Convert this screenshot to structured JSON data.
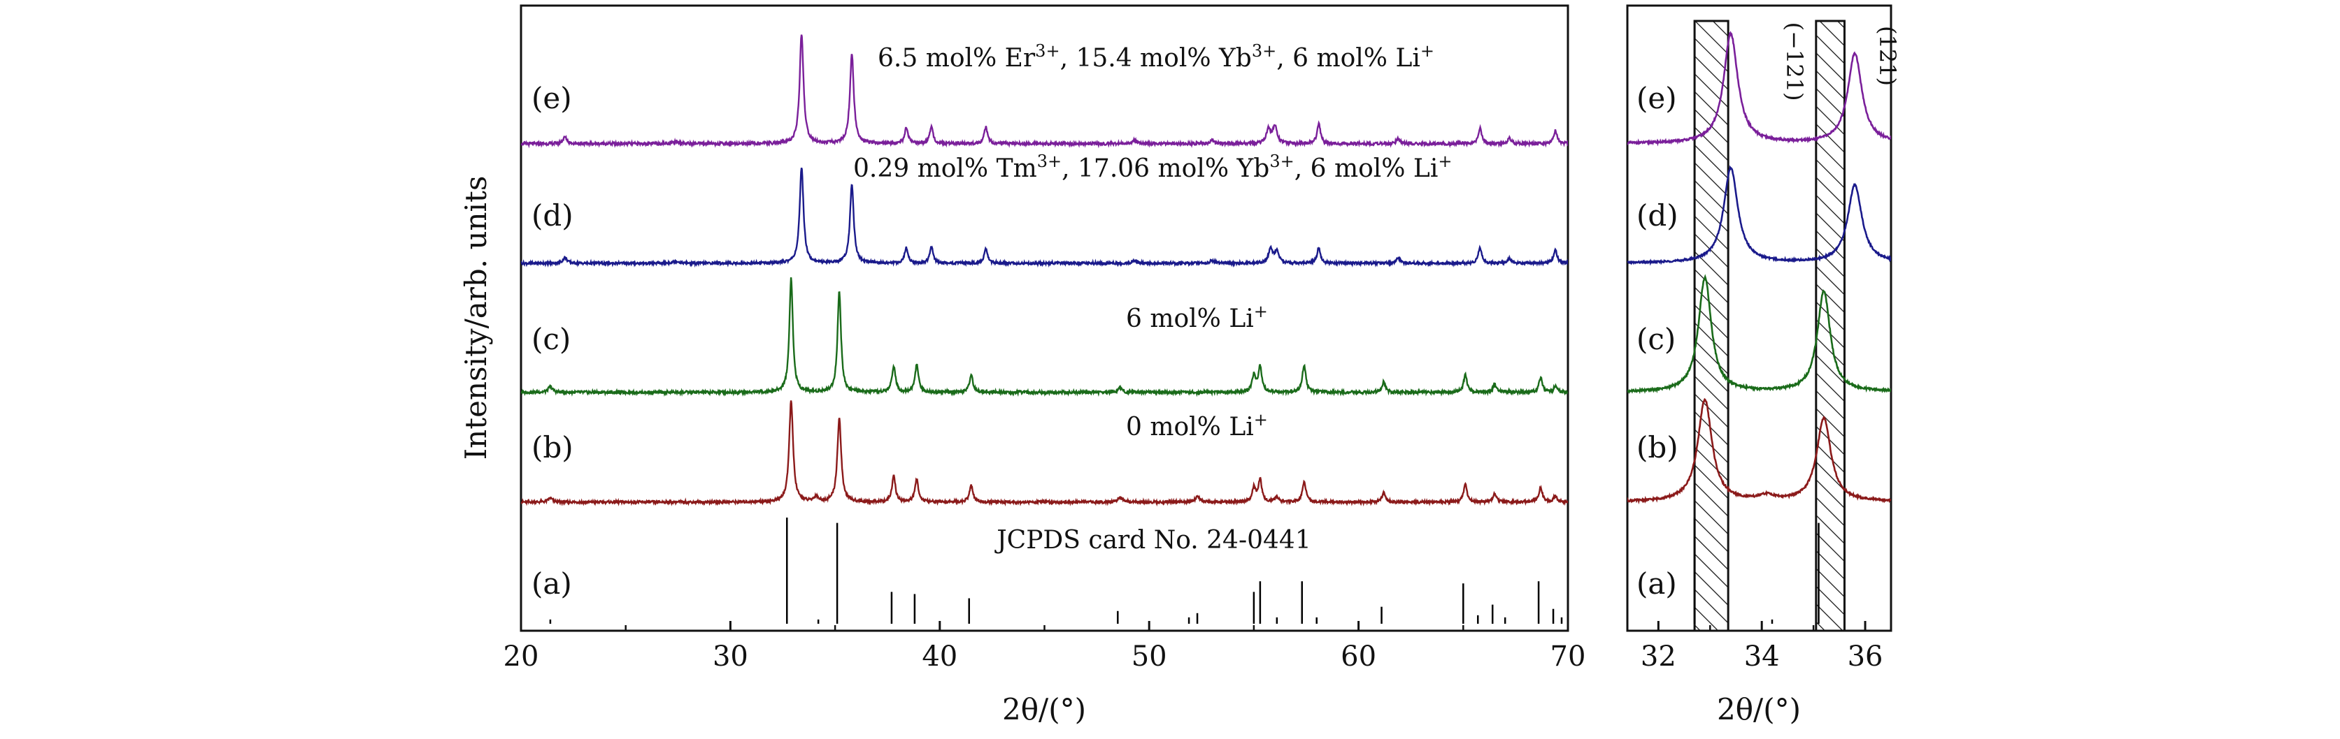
{
  "chart_data": [
    {
      "type": "line",
      "panel": "main",
      "xlabel": "2θ/(°)",
      "ylabel": "Intensity/arb. units",
      "xlim": [
        20,
        70
      ],
      "xticks": [
        "20",
        "30",
        "40",
        "50",
        "60",
        "70"
      ],
      "series": [
        {
          "name": "(a)",
          "annotation": "JCPDS card No. 24-0441",
          "color": "#000000",
          "kind": "stick",
          "sticks": [
            {
              "x": 21.4,
              "h": 4
            },
            {
              "x": 32.7,
              "h": 100
            },
            {
              "x": 34.2,
              "h": 4
            },
            {
              "x": 35.1,
              "h": 95
            },
            {
              "x": 37.7,
              "h": 30
            },
            {
              "x": 38.8,
              "h": 28
            },
            {
              "x": 41.4,
              "h": 24
            },
            {
              "x": 48.5,
              "h": 12
            },
            {
              "x": 51.9,
              "h": 6
            },
            {
              "x": 52.3,
              "h": 10
            },
            {
              "x": 55.0,
              "h": 30
            },
            {
              "x": 55.3,
              "h": 40
            },
            {
              "x": 56.1,
              "h": 6
            },
            {
              "x": 57.3,
              "h": 40
            },
            {
              "x": 58.0,
              "h": 6
            },
            {
              "x": 61.1,
              "h": 16
            },
            {
              "x": 65.0,
              "h": 38
            },
            {
              "x": 65.7,
              "h": 8
            },
            {
              "x": 66.4,
              "h": 18
            },
            {
              "x": 67.0,
              "h": 6
            },
            {
              "x": 68.6,
              "h": 40
            },
            {
              "x": 69.3,
              "h": 14
            },
            {
              "x": 69.7,
              "h": 6
            }
          ]
        },
        {
          "name": "(b)",
          "annotation": "0 mol% Li",
          "annotation_sup": "+",
          "color": "#8b1a1a",
          "kind": "xrd",
          "peaks": [
            {
              "x": 21.4,
              "h": 4,
              "w": 0.12
            },
            {
              "x": 32.9,
              "h": 100,
              "w": 0.11
            },
            {
              "x": 34.1,
              "h": 5,
              "w": 0.12
            },
            {
              "x": 35.2,
              "h": 82,
              "w": 0.11
            },
            {
              "x": 37.8,
              "h": 25,
              "w": 0.1
            },
            {
              "x": 38.9,
              "h": 22,
              "w": 0.1
            },
            {
              "x": 41.5,
              "h": 16,
              "w": 0.1
            },
            {
              "x": 48.6,
              "h": 5,
              "w": 0.12
            },
            {
              "x": 52.3,
              "h": 5,
              "w": 0.12
            },
            {
              "x": 55.0,
              "h": 14,
              "w": 0.1
            },
            {
              "x": 55.3,
              "h": 22,
              "w": 0.1
            },
            {
              "x": 56.1,
              "h": 5,
              "w": 0.1
            },
            {
              "x": 57.4,
              "h": 20,
              "w": 0.1
            },
            {
              "x": 61.2,
              "h": 9,
              "w": 0.1
            },
            {
              "x": 65.1,
              "h": 17,
              "w": 0.1
            },
            {
              "x": 66.5,
              "h": 8,
              "w": 0.1
            },
            {
              "x": 68.7,
              "h": 14,
              "w": 0.1
            },
            {
              "x": 69.4,
              "h": 6,
              "w": 0.1
            }
          ]
        },
        {
          "name": "(c)",
          "annotation": "6 mol% Li",
          "annotation_sup": "+",
          "color": "#1a6b1a",
          "kind": "xrd",
          "peaks": [
            {
              "x": 21.4,
              "h": 5,
              "w": 0.12
            },
            {
              "x": 32.9,
              "h": 100,
              "w": 0.1
            },
            {
              "x": 35.2,
              "h": 88,
              "w": 0.1
            },
            {
              "x": 37.8,
              "h": 23,
              "w": 0.1
            },
            {
              "x": 38.9,
              "h": 24,
              "w": 0.1
            },
            {
              "x": 41.5,
              "h": 15,
              "w": 0.1
            },
            {
              "x": 48.6,
              "h": 4,
              "w": 0.12
            },
            {
              "x": 55.0,
              "h": 15,
              "w": 0.1
            },
            {
              "x": 55.3,
              "h": 22,
              "w": 0.1
            },
            {
              "x": 57.4,
              "h": 24,
              "w": 0.1
            },
            {
              "x": 61.2,
              "h": 9,
              "w": 0.1
            },
            {
              "x": 65.1,
              "h": 15,
              "w": 0.1
            },
            {
              "x": 66.5,
              "h": 7,
              "w": 0.1
            },
            {
              "x": 68.7,
              "h": 13,
              "w": 0.1
            },
            {
              "x": 69.4,
              "h": 5,
              "w": 0.1
            }
          ]
        },
        {
          "name": "(d)",
          "annotation_parts": [
            "0.29 mol% Tm",
            "3+",
            ", 17.06 mol% Yb",
            "3+",
            ", 6 mol% Li",
            "+"
          ],
          "color": "#1a1a8b",
          "kind": "xrd",
          "peaks": [
            {
              "x": 22.1,
              "h": 6,
              "w": 0.12
            },
            {
              "x": 27.4,
              "h": 2,
              "w": 0.2
            },
            {
              "x": 33.4,
              "h": 100,
              "w": 0.11
            },
            {
              "x": 35.8,
              "h": 82,
              "w": 0.11
            },
            {
              "x": 38.4,
              "h": 16,
              "w": 0.1
            },
            {
              "x": 39.6,
              "h": 17,
              "w": 0.1
            },
            {
              "x": 42.2,
              "h": 15,
              "w": 0.1
            },
            {
              "x": 49.3,
              "h": 3,
              "w": 0.12
            },
            {
              "x": 53.0,
              "h": 3,
              "w": 0.12
            },
            {
              "x": 55.8,
              "h": 15,
              "w": 0.12
            },
            {
              "x": 56.1,
              "h": 12,
              "w": 0.12
            },
            {
              "x": 58.1,
              "h": 16,
              "w": 0.1
            },
            {
              "x": 61.9,
              "h": 6,
              "w": 0.1
            },
            {
              "x": 65.8,
              "h": 16,
              "w": 0.1
            },
            {
              "x": 67.2,
              "h": 5,
              "w": 0.1
            },
            {
              "x": 69.4,
              "h": 14,
              "w": 0.1
            }
          ]
        },
        {
          "name": "(e)",
          "annotation_parts": [
            "6.5 mol% Er",
            "3+",
            ", 15.4 mol% Yb",
            "3+",
            ", 6 mol% Li",
            "+"
          ],
          "color": "#7a1f9a",
          "kind": "xrd",
          "peaks": [
            {
              "x": 22.1,
              "h": 6,
              "w": 0.12
            },
            {
              "x": 27.4,
              "h": 2,
              "w": 0.2
            },
            {
              "x": 33.4,
              "h": 100,
              "w": 0.11
            },
            {
              "x": 35.8,
              "h": 82,
              "w": 0.11
            },
            {
              "x": 38.4,
              "h": 14,
              "w": 0.1
            },
            {
              "x": 39.6,
              "h": 15,
              "w": 0.1
            },
            {
              "x": 42.2,
              "h": 15,
              "w": 0.1
            },
            {
              "x": 49.3,
              "h": 3,
              "w": 0.12
            },
            {
              "x": 53.0,
              "h": 3,
              "w": 0.12
            },
            {
              "x": 55.7,
              "h": 13,
              "w": 0.12
            },
            {
              "x": 56.0,
              "h": 16,
              "w": 0.12
            },
            {
              "x": 58.1,
              "h": 18,
              "w": 0.1
            },
            {
              "x": 61.9,
              "h": 5,
              "w": 0.1
            },
            {
              "x": 65.8,
              "h": 14,
              "w": 0.1
            },
            {
              "x": 67.2,
              "h": 5,
              "w": 0.1
            },
            {
              "x": 69.4,
              "h": 12,
              "w": 0.1
            }
          ]
        }
      ]
    },
    {
      "type": "line",
      "panel": "zoom",
      "xlabel": "2θ/(°)",
      "xlim": [
        31.4,
        36.5
      ],
      "xticks": [
        "32",
        "34",
        "36"
      ],
      "labels": [
        "(a)",
        "(b)",
        "(c)",
        "(d)",
        "(e)"
      ],
      "hkl_labels": [
        "(−121)",
        "(121)"
      ],
      "hatched_regions": [
        {
          "from": 32.7,
          "to": 33.35
        },
        {
          "from": 35.05,
          "to": 35.6
        }
      ]
    }
  ]
}
